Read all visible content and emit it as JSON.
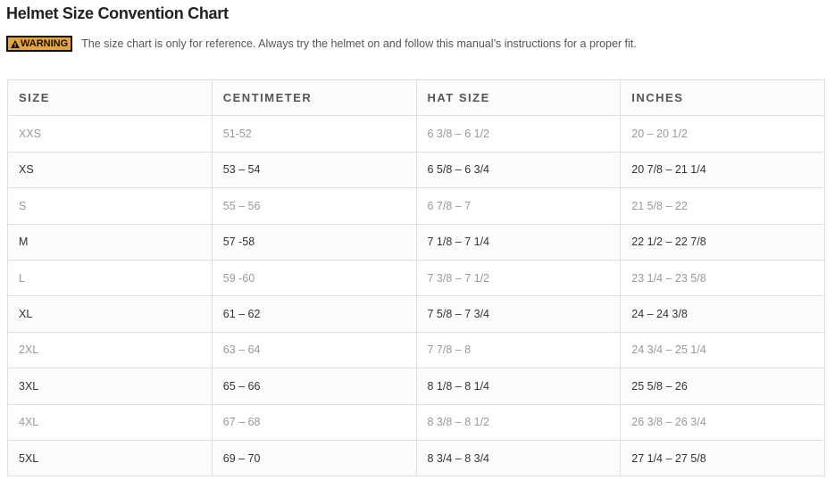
{
  "title": "Helmet Size Convention Chart",
  "warning": {
    "badge": "WARNING",
    "icon": "warning-triangle-icon",
    "badge_color": "#e8a33a",
    "text": "The size chart is only for reference. Always try the helmet on and follow this manual’s instructions for a proper fit."
  },
  "table": {
    "headers": [
      "SIZE",
      "CENTIMETER",
      "HAT SIZE",
      "INCHES"
    ],
    "rows": [
      [
        "XXS",
        "51-52",
        "6 3/8 – 6 1/2",
        "20 – 20 1/2"
      ],
      [
        "XS",
        "53 – 54",
        "6 5/8 – 6 3/4",
        "20 7/8 – 21 1/4"
      ],
      [
        "S",
        "55 – 56",
        "6 7/8 – 7",
        "21 5/8 – 22"
      ],
      [
        "M",
        "57 -58",
        "7 1/8 – 7 1/4",
        "22 1/2 – 22 7/8"
      ],
      [
        "L",
        "59 -60",
        "7 3/8 – 7 1/2",
        "23 1/4 – 23 5/8"
      ],
      [
        "XL",
        "61 – 62",
        "7 5/8 – 7 3/4",
        "24 – 24 3/8"
      ],
      [
        "2XL",
        "63 – 64",
        "7 7/8 – 8",
        "24 3/4 – 25 1/4"
      ],
      [
        "3XL",
        "65 – 66",
        "8 1/8 – 8 1/4",
        "25 5/8 – 26"
      ],
      [
        "4XL",
        "67 – 68",
        "8 3/8 – 8 1/2",
        "26 3/8 – 26 3/4"
      ],
      [
        "5XL",
        "69 – 70",
        "8 3/4 – 8 3/4",
        "27 1/4 – 27 5/8"
      ]
    ]
  }
}
